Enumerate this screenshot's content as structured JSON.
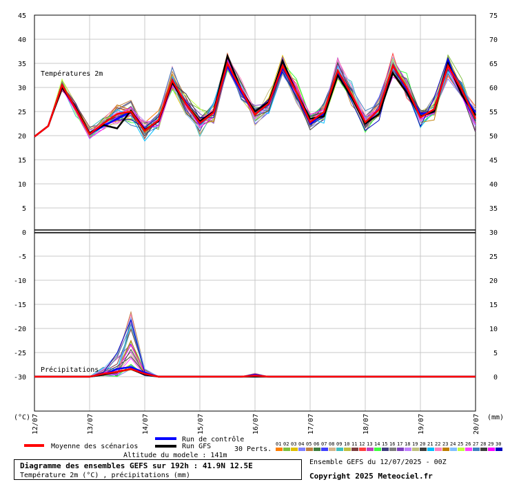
{
  "chart_data": {
    "type": "line",
    "title": "Diagramme des ensembles GEFS sur 192h : 41.9N 12.5E",
    "subtitle": "Température 2m (°C) , précipitations (mm)",
    "left_unit": "(°C)",
    "right_unit": "(mm)",
    "left_ticks": [
      45,
      40,
      35,
      30,
      25,
      20,
      15,
      10,
      5,
      0,
      -5,
      -10,
      -15,
      -20,
      -25,
      -30
    ],
    "right_ticks": [
      75,
      70,
      65,
      60,
      55,
      50,
      45,
      40,
      35,
      30,
      25,
      20,
      15,
      10,
      5,
      0
    ],
    "x_labels": [
      "12/07",
      "13/07",
      "14/07",
      "15/07",
      "16/07",
      "17/07",
      "18/07",
      "19/07",
      "20/07"
    ],
    "temperature_panel_label": "Températures 2m",
    "precip_panel_label": "Précipitations",
    "temperature": {
      "x_hours": [
        0,
        6,
        12,
        18,
        24,
        30,
        36,
        42,
        48,
        54,
        60,
        66,
        72,
        78,
        84,
        90,
        96,
        102,
        108,
        114,
        120,
        126,
        132,
        138,
        144,
        150,
        156,
        162,
        168,
        174,
        180,
        186,
        192
      ],
      "ylim": [
        -30,
        45
      ],
      "series": [
        {
          "name": "Moyenne des scénarios",
          "color": "#ff0000",
          "width": 2.5,
          "values": [
            19.8,
            22.0,
            30.5,
            25.5,
            20.3,
            22.5,
            24.5,
            25.0,
            21.0,
            23.2,
            31.5,
            26.5,
            22.6,
            24.8,
            35.0,
            29.5,
            24.4,
            26.7,
            34.5,
            29.0,
            22.8,
            24.9,
            33.5,
            28.5,
            22.8,
            25.4,
            34.5,
            30.0,
            23.8,
            25.5,
            34.5,
            29.5,
            23.5
          ]
        },
        {
          "name": "Run de contrôle",
          "color": "#0000ff",
          "width": 2.5,
          "values": [
            19.8,
            22.0,
            30.5,
            25.5,
            20.3,
            22.0,
            23.5,
            25.0,
            21.0,
            23.0,
            31.5,
            26.5,
            22.5,
            25.0,
            34.5,
            29.0,
            24.5,
            26.5,
            34.0,
            29.0,
            22.5,
            24.5,
            33.0,
            28.5,
            22.5,
            25.5,
            34.5,
            29.5,
            24.5,
            25.0,
            35.5,
            29.0,
            24.8
          ]
        },
        {
          "name": "Run GFS",
          "color": "#000000",
          "width": 2.5,
          "values": [
            19.8,
            22.0,
            30.0,
            25.8,
            20.5,
            22.2,
            21.5,
            25.2,
            21.2,
            23.0,
            31.0,
            26.5,
            23.0,
            25.0,
            36.5,
            29.5,
            25.0,
            27.0,
            35.5,
            29.0,
            23.5,
            24.0,
            32.5,
            28.0,
            22.5,
            24.5,
            33.0,
            29.0,
            24.0,
            25.0,
            35.0,
            28.5,
            24.2
          ]
        }
      ]
    },
    "precipitation": {
      "x_hours": [
        0,
        6,
        12,
        18,
        24,
        30,
        36,
        42,
        48,
        54,
        60,
        66,
        72,
        78,
        84,
        90,
        96,
        102,
        108,
        114,
        120,
        126,
        132,
        138,
        144,
        150,
        156,
        162,
        168,
        174,
        180,
        186,
        192
      ],
      "ylim": [
        0,
        75
      ],
      "series": [
        {
          "name": "Moyenne des scénarios",
          "color": "#ff0000",
          "width": 2.5,
          "values": [
            0,
            0,
            0,
            0,
            0,
            0.3,
            0.5,
            0.8,
            0.3,
            0,
            0,
            0,
            0,
            0,
            0,
            0,
            0.1,
            0,
            0,
            0,
            0,
            0,
            0,
            0,
            0,
            0,
            0,
            0,
            0,
            0,
            0,
            0,
            0
          ]
        },
        {
          "name": "Run de contrôle",
          "color": "#0000ff",
          "width": 2.5,
          "values": [
            0,
            0,
            0,
            0,
            0,
            0.2,
            0.8,
            1.0,
            0.4,
            0,
            0,
            0,
            0,
            0,
            0,
            0,
            0.1,
            0,
            0,
            0,
            0,
            0,
            0,
            0,
            0,
            0,
            0,
            0,
            0,
            0,
            0,
            0,
            0
          ]
        },
        {
          "name": "Run GFS",
          "color": "#000000",
          "width": 2.5,
          "values": [
            0,
            0,
            0,
            0,
            0,
            0.2,
            0.5,
            0.8,
            0.2,
            0,
            0,
            0,
            0,
            0,
            0,
            0,
            0,
            0,
            0,
            0,
            0,
            0,
            0,
            0,
            0,
            0,
            0,
            0,
            0,
            0,
            0,
            0,
            0
          ]
        }
      ]
    },
    "legend": {
      "mean_label": "Moyenne des scénarios",
      "control_label": "Run de contrôle",
      "gfs_label": "Run GFS",
      "perts_label": "30 Perts.",
      "pert_numbers": [
        "01",
        "02",
        "03",
        "04",
        "05",
        "06",
        "07",
        "08",
        "09",
        "10",
        "11",
        "12",
        "13",
        "14",
        "15",
        "16",
        "17",
        "18",
        "19",
        "20",
        "21",
        "22",
        "23",
        "24",
        "25",
        "26",
        "27",
        "28",
        "29",
        "30"
      ],
      "pert_colors": [
        "#ff7f00",
        "#7fbf3f",
        "#e0c000",
        "#7f7fff",
        "#bf7f3f",
        "#3f7f3f",
        "#3f3fff",
        "#d4b48c",
        "#3fbfbf",
        "#bfbf3f",
        "#7f3f3f",
        "#ff3f3f",
        "#bf3fbf",
        "#3fff3f",
        "#3f3f7f",
        "#7f7f7f",
        "#7f3fbf",
        "#bf7fff",
        "#bfbf7f",
        "#3f3f3f",
        "#00bfff",
        "#ff7fbf",
        "#bf7f00",
        "#7fbfff",
        "#bfff3f",
        "#ff3fff",
        "#3f7fbf",
        "#3f3f3f",
        "#ff00ff",
        "#0000bf"
      ]
    },
    "altitude": "Altitude du modele : 141m",
    "ensemble_run": "Ensemble GEFS du 12/07/2025 - 00Z",
    "copyright": "Copyright 2025 Meteociel.fr"
  }
}
